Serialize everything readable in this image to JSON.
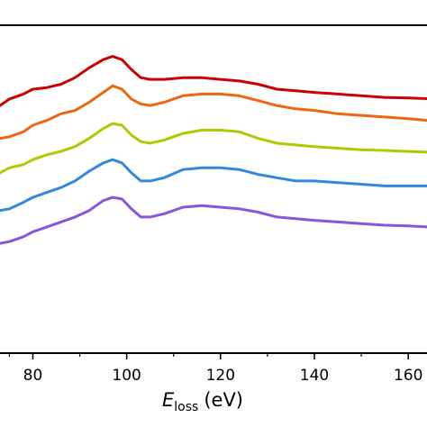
{
  "chart_data": {
    "type": "line",
    "xlabel": "E",
    "xlabel_sub": "loss",
    "xlabel_unit": "(eV)",
    "x_ticks": [
      "80",
      "100",
      "120",
      "140",
      "160"
    ],
    "xlim": [
      73,
      164
    ],
    "ylim": [
      0,
      1
    ],
    "grid": false,
    "legend": "none",
    "series": [
      {
        "color": "#cc0000",
        "x": [
          73,
          75,
          78,
          80,
          83,
          86,
          89,
          92,
          95,
          97,
          99,
          101,
          103,
          105,
          108,
          112,
          116,
          120,
          124,
          128,
          132,
          136,
          140,
          145,
          150,
          155,
          160,
          164
        ],
        "y": [
          0.755,
          0.775,
          0.79,
          0.805,
          0.81,
          0.82,
          0.84,
          0.87,
          0.895,
          0.905,
          0.895,
          0.865,
          0.84,
          0.835,
          0.835,
          0.84,
          0.84,
          0.835,
          0.83,
          0.82,
          0.805,
          0.8,
          0.795,
          0.79,
          0.785,
          0.78,
          0.778,
          0.776
        ]
      },
      {
        "color": "#ee6611",
        "x": [
          73,
          75,
          78,
          80,
          83,
          86,
          89,
          92,
          95,
          97,
          99,
          101,
          103,
          105,
          108,
          112,
          116,
          120,
          124,
          128,
          132,
          136,
          140,
          145,
          150,
          155,
          160,
          164
        ],
        "y": [
          0.655,
          0.66,
          0.675,
          0.695,
          0.71,
          0.73,
          0.74,
          0.765,
          0.795,
          0.815,
          0.805,
          0.775,
          0.76,
          0.755,
          0.765,
          0.785,
          0.79,
          0.79,
          0.785,
          0.77,
          0.755,
          0.745,
          0.74,
          0.73,
          0.725,
          0.72,
          0.715,
          0.71
        ]
      },
      {
        "color": "#aacc00",
        "x": [
          73,
          75,
          78,
          80,
          83,
          86,
          89,
          92,
          95,
          97,
          99,
          101,
          103,
          105,
          108,
          112,
          116,
          120,
          124,
          128,
          132,
          136,
          140,
          145,
          150,
          155,
          160,
          164
        ],
        "y": [
          0.55,
          0.565,
          0.575,
          0.59,
          0.605,
          0.615,
          0.63,
          0.655,
          0.685,
          0.7,
          0.695,
          0.665,
          0.645,
          0.64,
          0.65,
          0.67,
          0.68,
          0.68,
          0.675,
          0.655,
          0.64,
          0.635,
          0.63,
          0.625,
          0.62,
          0.618,
          0.615,
          0.613
        ]
      },
      {
        "color": "#3388dd",
        "x": [
          73,
          75,
          78,
          80,
          83,
          86,
          89,
          92,
          95,
          97,
          99,
          101,
          103,
          105,
          108,
          112,
          116,
          120,
          124,
          128,
          132,
          136,
          140,
          145,
          150,
          155,
          160,
          164
        ],
        "y": [
          0.435,
          0.44,
          0.46,
          0.475,
          0.49,
          0.505,
          0.525,
          0.555,
          0.58,
          0.59,
          0.58,
          0.55,
          0.525,
          0.525,
          0.535,
          0.56,
          0.565,
          0.565,
          0.56,
          0.545,
          0.535,
          0.525,
          0.525,
          0.52,
          0.515,
          0.51,
          0.51,
          0.51
        ]
      },
      {
        "color": "#8855dd",
        "x": [
          73,
          75,
          78,
          80,
          83,
          86,
          89,
          92,
          95,
          97,
          99,
          101,
          103,
          105,
          108,
          112,
          116,
          120,
          124,
          128,
          132,
          136,
          140,
          145,
          150,
          155,
          160,
          164
        ],
        "y": [
          0.335,
          0.34,
          0.355,
          0.37,
          0.385,
          0.4,
          0.415,
          0.435,
          0.465,
          0.475,
          0.47,
          0.44,
          0.415,
          0.415,
          0.425,
          0.445,
          0.45,
          0.445,
          0.44,
          0.43,
          0.415,
          0.41,
          0.405,
          0.4,
          0.395,
          0.39,
          0.388,
          0.385
        ]
      }
    ]
  }
}
